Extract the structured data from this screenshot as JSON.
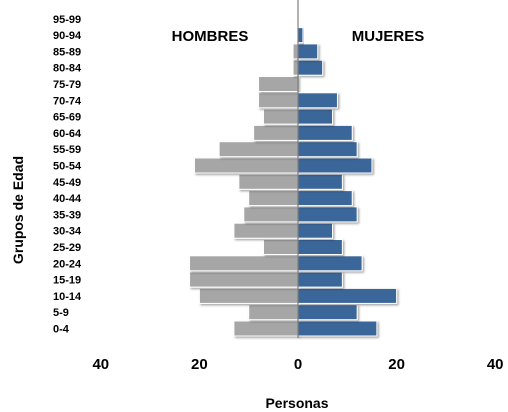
{
  "chart_data": {
    "type": "bar",
    "orientation": "horizontal",
    "subtype": "population-pyramid",
    "categories": [
      "0-4",
      "5-9",
      "10-14",
      "15-19",
      "20-24",
      "25-29",
      "30-34",
      "35-39",
      "40-44",
      "45-49",
      "50-54",
      "55-59",
      "60-64",
      "65-69",
      "70-74",
      "75-79",
      "80-84",
      "85-89",
      "90-94",
      "95-99"
    ],
    "series": [
      {
        "name": "HOMBRES",
        "side": "left",
        "color": "#a6a6a6",
        "values": [
          13,
          10,
          20,
          22,
          22,
          7,
          13,
          11,
          10,
          12,
          21,
          16,
          9,
          7,
          8,
          8,
          1,
          1,
          0,
          0
        ]
      },
      {
        "name": "MUJERES",
        "side": "right",
        "color": "#3a6699",
        "values": [
          16,
          12,
          20,
          9,
          13,
          9,
          7,
          12,
          11,
          9,
          15,
          12,
          11,
          7,
          8,
          0,
          5,
          4,
          1,
          0
        ]
      }
    ],
    "xlabel": "Personas",
    "ylabel": "Grupos  de  Edad",
    "xlim": [
      -40,
      40
    ],
    "x_ticks": [
      {
        "value": -40,
        "label": "40"
      },
      {
        "value": -20,
        "label": "20"
      },
      {
        "value": 0,
        "label": "0"
      },
      {
        "value": 20,
        "label": "20"
      },
      {
        "value": 40,
        "label": "40"
      }
    ],
    "grid": false,
    "legend": "inline-top"
  }
}
